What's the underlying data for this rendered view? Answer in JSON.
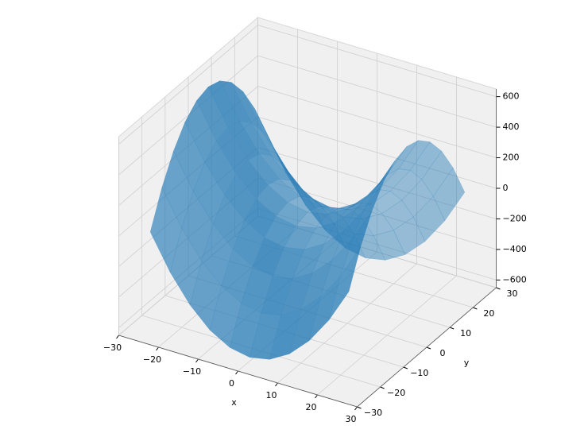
{
  "chart_data": {
    "type": "surface3d",
    "x": [
      -25,
      -20,
      -15,
      -10,
      -5,
      0,
      5,
      10,
      15,
      20,
      25
    ],
    "y": [
      -25,
      -20,
      -15,
      -10,
      -5,
      0,
      5,
      10,
      15,
      20,
      25
    ],
    "z": [
      [
        0,
        -225,
        -400,
        -525,
        -600,
        -625,
        -600,
        -525,
        -400,
        -225,
        0
      ],
      [
        225,
        0,
        -175,
        -300,
        -375,
        -400,
        -375,
        -300,
        -175,
        0,
        225
      ],
      [
        400,
        175,
        0,
        -125,
        -200,
        -225,
        -200,
        -125,
        0,
        175,
        400
      ],
      [
        525,
        300,
        125,
        0,
        -75,
        -100,
        -75,
        0,
        125,
        300,
        525
      ],
      [
        600,
        375,
        200,
        75,
        0,
        -25,
        0,
        75,
        200,
        375,
        600
      ],
      [
        625,
        400,
        225,
        100,
        25,
        0,
        25,
        100,
        225,
        400,
        625
      ],
      [
        600,
        375,
        200,
        75,
        0,
        -25,
        0,
        75,
        200,
        375,
        600
      ],
      [
        525,
        300,
        125,
        0,
        -75,
        -100,
        -75,
        0,
        125,
        300,
        525
      ],
      [
        400,
        175,
        0,
        -125,
        -200,
        -225,
        -200,
        -125,
        0,
        175,
        400
      ],
      [
        225,
        0,
        -175,
        -300,
        -375,
        -400,
        -375,
        -300,
        -175,
        0,
        225
      ],
      [
        0,
        -225,
        -400,
        -525,
        -600,
        -625,
        -600,
        -525,
        -400,
        -225,
        0
      ]
    ],
    "color": "#1f77b4",
    "xlabel": "x",
    "ylabel": "y",
    "xlim": [
      -30,
      30
    ],
    "ylim": [
      -30,
      30
    ],
    "zlim": [
      -650,
      650
    ],
    "xticks": [
      {
        "value": -30,
        "label": "−30"
      },
      {
        "value": -20,
        "label": "−20"
      },
      {
        "value": -10,
        "label": "−10"
      },
      0,
      10,
      20,
      30
    ],
    "yticks": [
      {
        "value": -30,
        "label": "−30"
      },
      {
        "value": -20,
        "label": "−20"
      },
      {
        "value": -10,
        "label": "−10"
      },
      0,
      10,
      20,
      30
    ],
    "zticks": [
      {
        "value": -600,
        "label": "−600"
      },
      {
        "value": -400,
        "label": "−400"
      },
      {
        "value": -200,
        "label": "−200"
      },
      0,
      200,
      400,
      600
    ],
    "grid": true
  }
}
